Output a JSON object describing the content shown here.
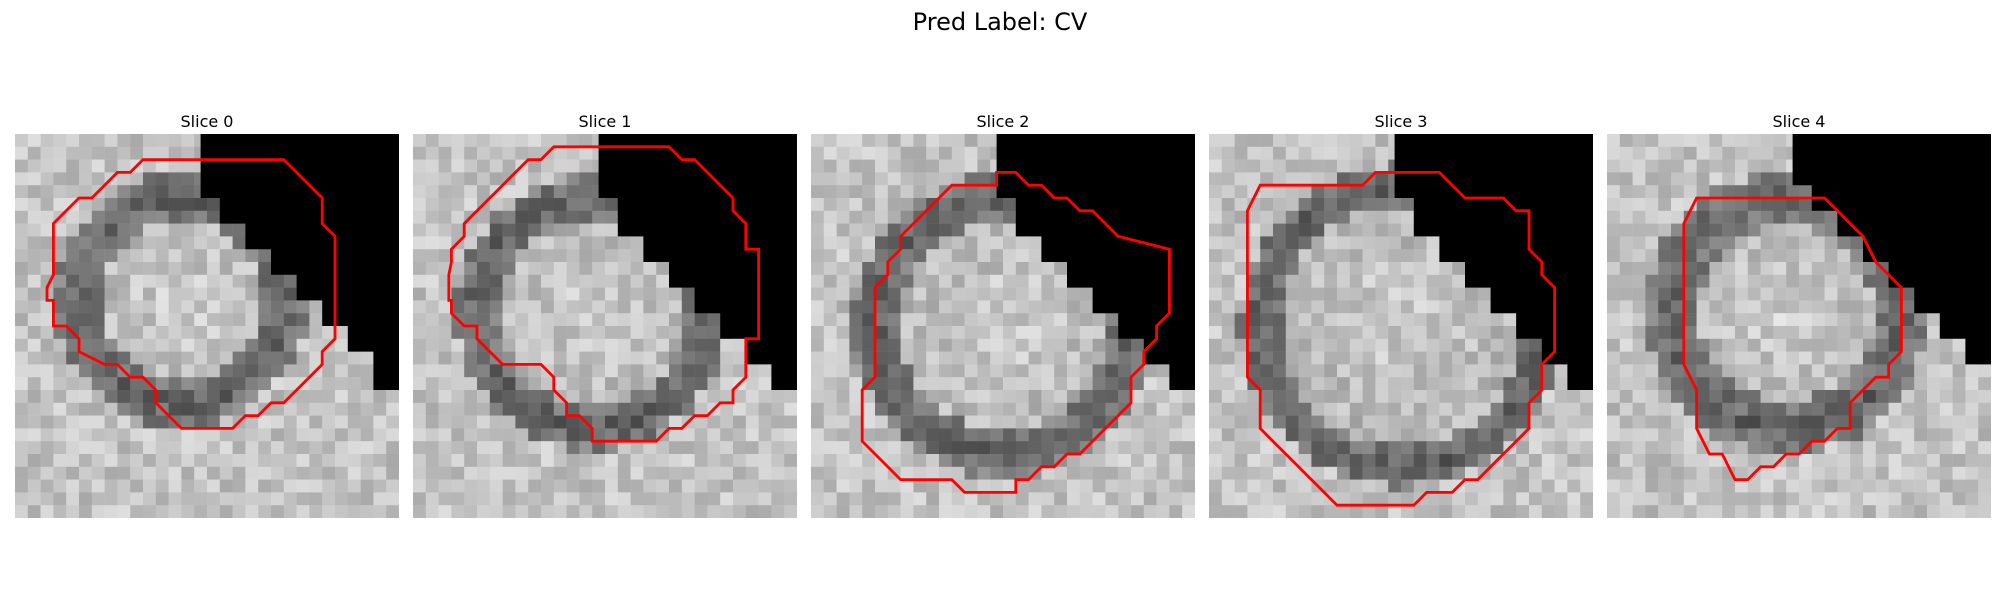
{
  "figure": {
    "title": "Pred Label: CV"
  },
  "slices": [
    {
      "title": "Slice 0"
    },
    {
      "title": "Slice 1"
    },
    {
      "title": "Slice 2"
    },
    {
      "title": "Slice 3"
    },
    {
      "title": "Slice 4"
    }
  ],
  "colors": {
    "contour": "#ff0000",
    "mask": "#000000",
    "background": "#ffffff"
  }
}
